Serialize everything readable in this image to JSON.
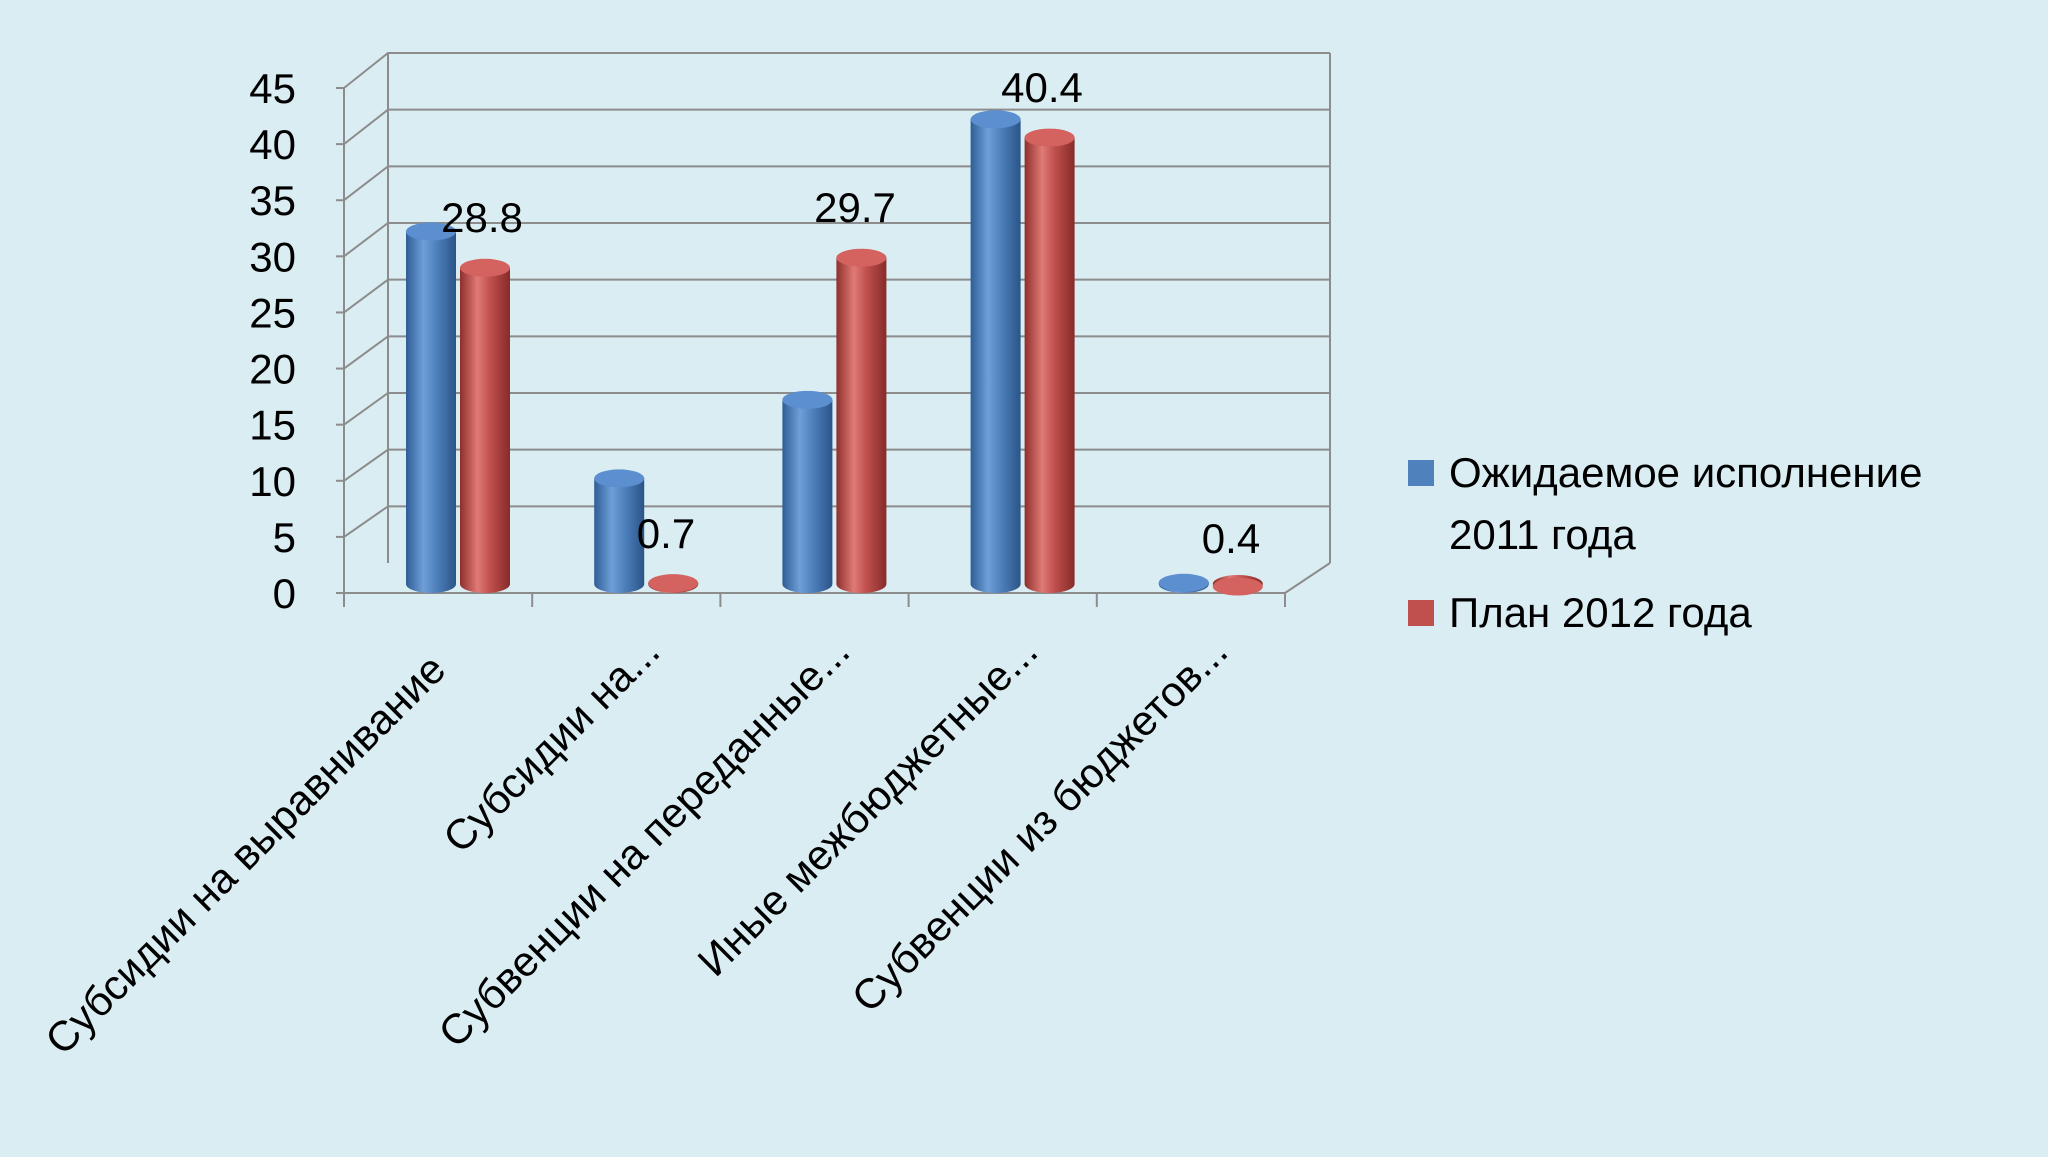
{
  "chart_data": {
    "type": "bar",
    "title": "",
    "xlabel": "",
    "ylabel": "",
    "ylim": [
      0,
      45
    ],
    "yticks": [
      0,
      5,
      10,
      15,
      20,
      25,
      30,
      35,
      40,
      45
    ],
    "grid": true,
    "legend_position": "right",
    "categories": [
      "Субсидии на выравнивание",
      "Субсидии на...",
      "Субвенции на переданные...",
      "Иные межбюджетные...",
      "Субвенции из бюджетов..."
    ],
    "series": [
      {
        "name": "Ожидаемое исполнение 2011 года",
        "legend_lines": [
          "Ожидаемое исполнение",
          "2011 года"
        ],
        "color": "#4f81bd",
        "values": [
          31.5,
          9.5,
          16.5,
          41.5,
          0.2
        ]
      },
      {
        "name": "План 2012 года",
        "legend_lines": [
          "План 2012 года"
        ],
        "color": "#c0504d",
        "values": [
          28.8,
          0.7,
          29.7,
          40.4,
          0.4
        ],
        "data_labels": [
          "28.8",
          "0.7",
          "29.7",
          "40.4",
          "0.4"
        ]
      }
    ]
  }
}
